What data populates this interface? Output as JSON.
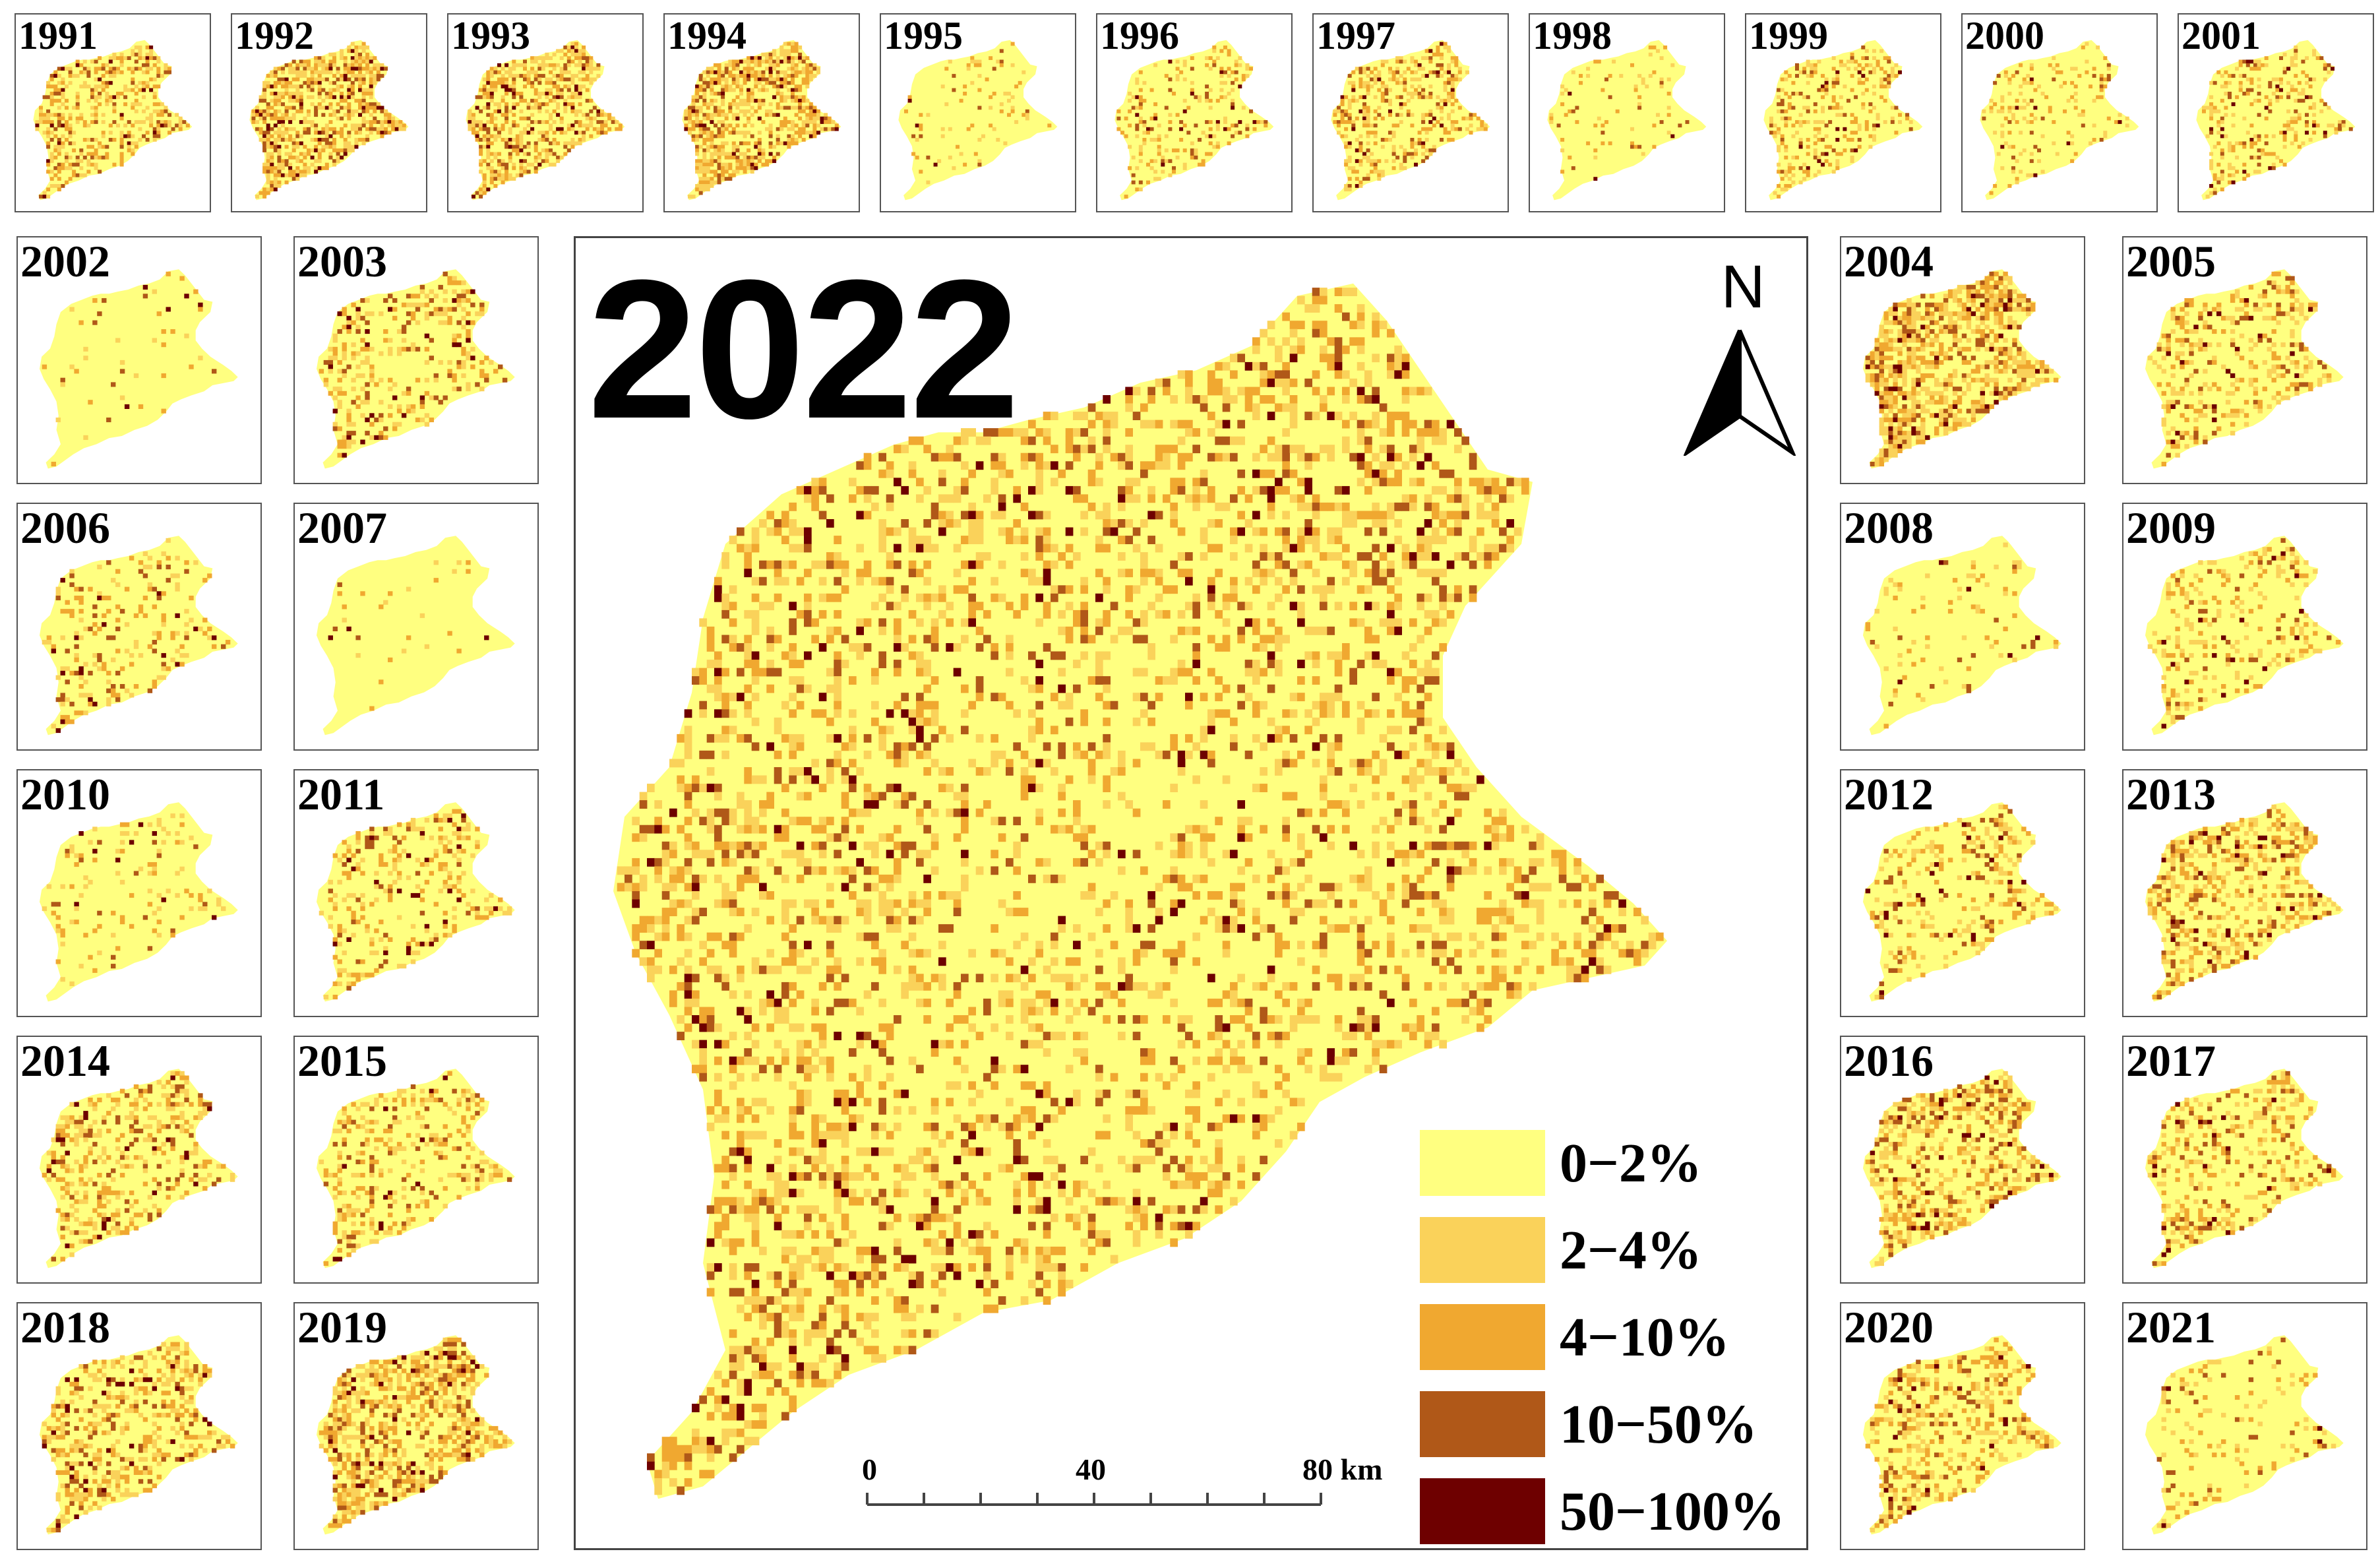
{
  "main_map": {
    "year": "2022"
  },
  "north_arrow": {
    "label": "N"
  },
  "legend": {
    "items": [
      {
        "label": "0−2%",
        "color": "#FFFF80"
      },
      {
        "label": "2−4%",
        "color": "#FAD25A"
      },
      {
        "label": "4−10%",
        "color": "#F0A830"
      },
      {
        "label": "10−50%",
        "color": "#B05818"
      },
      {
        "label": "50−100%",
        "color": "#6E0000"
      }
    ]
  },
  "scale_bar": {
    "labels": [
      "0",
      "40",
      "80 km"
    ]
  },
  "small_maps": [
    {
      "year": "1991",
      "intensity": 0.55
    },
    {
      "year": "1992",
      "intensity": 0.8
    },
    {
      "year": "1993",
      "intensity": 0.7
    },
    {
      "year": "1994",
      "intensity": 0.85
    },
    {
      "year": "1995",
      "intensity": 0.1
    },
    {
      "year": "1996",
      "intensity": 0.3
    },
    {
      "year": "1997",
      "intensity": 0.5
    },
    {
      "year": "1998",
      "intensity": 0.1
    },
    {
      "year": "1999",
      "intensity": 0.35
    },
    {
      "year": "2000",
      "intensity": 0.2
    },
    {
      "year": "2001",
      "intensity": 0.35
    },
    {
      "year": "2002",
      "intensity": 0.08
    },
    {
      "year": "2003",
      "intensity": 0.35
    },
    {
      "year": "2004",
      "intensity": 0.85
    },
    {
      "year": "2005",
      "intensity": 0.35
    },
    {
      "year": "2006",
      "intensity": 0.25
    },
    {
      "year": "2007",
      "intensity": 0.05
    },
    {
      "year": "2008",
      "intensity": 0.12
    },
    {
      "year": "2009",
      "intensity": 0.3
    },
    {
      "year": "2010",
      "intensity": 0.15
    },
    {
      "year": "2011",
      "intensity": 0.35
    },
    {
      "year": "2012",
      "intensity": 0.3
    },
    {
      "year": "2013",
      "intensity": 0.55
    },
    {
      "year": "2014",
      "intensity": 0.45
    },
    {
      "year": "2015",
      "intensity": 0.4
    },
    {
      "year": "2016",
      "intensity": 0.55
    },
    {
      "year": "2017",
      "intensity": 0.4
    },
    {
      "year": "2018",
      "intensity": 0.55
    },
    {
      "year": "2019",
      "intensity": 0.75
    },
    {
      "year": "2020",
      "intensity": 0.5
    },
    {
      "year": "2021",
      "intensity": 0.15
    }
  ]
}
